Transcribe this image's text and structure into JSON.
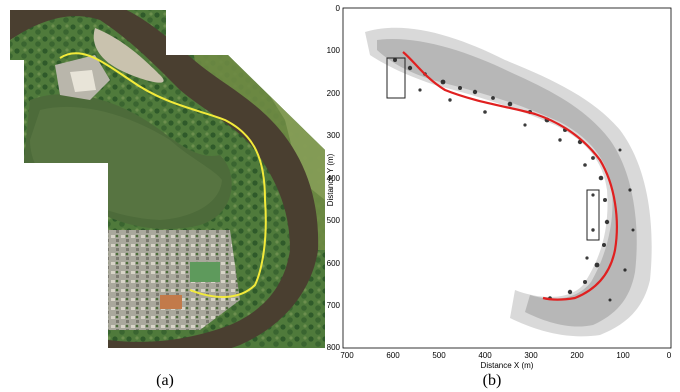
{
  "panel_a": {
    "caption": "(a)"
  },
  "panel_b": {
    "caption": "(b)",
    "xlabel": "Distance X (m)",
    "ylabel": "Distance Y (m)",
    "x_ticks": [
      "700",
      "600",
      "500",
      "400",
      "300",
      "200",
      "100",
      "0"
    ],
    "y_ticks": [
      "0",
      "100",
      "200",
      "300",
      "400",
      "500",
      "600",
      "700",
      "800"
    ]
  },
  "colors": {
    "water": "#4a3f30",
    "lake": "#4d6b3a",
    "trail_yellow": "#f2ea3a",
    "trail_red": "#e02020"
  }
}
